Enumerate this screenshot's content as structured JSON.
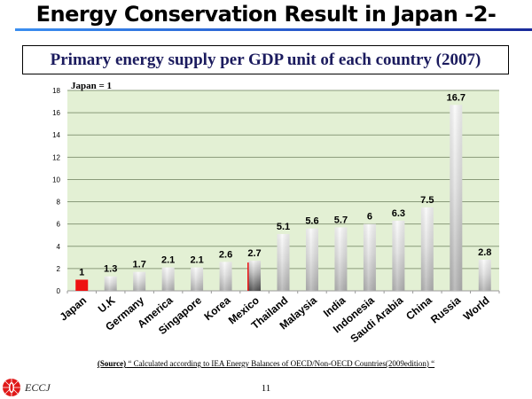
{
  "slide": {
    "title": "Energy Conservation Result in Japan -2-",
    "subtitle": "Primary energy supply per GDP unit of each country (2007)",
    "source_label": "(Source)",
    "source_text": " “ Calculated according to IEA Energy Balances of OECD/Non-OECD Countries(2009edition) “",
    "page_number": "11",
    "logo_text": "ECCJ",
    "logo_icon": "eccj-logo-icon"
  },
  "chart_data": {
    "type": "bar",
    "title": "Primary energy supply per GDP unit of each country (2007)",
    "annotation": "Japan = 1",
    "xlabel": "",
    "ylabel": "",
    "ylim": [
      0,
      18
    ],
    "yticks": [
      0,
      2,
      4,
      6,
      8,
      10,
      12,
      14,
      16,
      18
    ],
    "grid": true,
    "legend": "none",
    "categories": [
      "Japan",
      "U.K",
      "Germany",
      "America",
      "Singapore",
      "Korea",
      "Mexico",
      "Thailand",
      "Malaysia",
      "India",
      "Indonesia",
      "Saudi Arabia",
      "China",
      "Russia",
      "World"
    ],
    "values": [
      1,
      1.3,
      1.7,
      2.1,
      2.1,
      2.6,
      2.7,
      5.1,
      5.6,
      5.7,
      6,
      6.3,
      7.5,
      16.7,
      2.8
    ],
    "labels": [
      "1",
      "1.3",
      "1.7",
      "2.1",
      "2.1",
      "2.6",
      "2.7",
      "5.1",
      "5.6",
      "5.7",
      "6",
      "6.3",
      "7.5",
      "16.7",
      "2.8"
    ],
    "colors": {
      "plot_background": "#e3f0d4",
      "gridline": "#8a9a7a",
      "highlight_bar": "#ee1111",
      "bar_light": "#f7f7f7",
      "bar_dark": "#b5b5b5",
      "mexico_dark": "#555555"
    },
    "highlight_index": 0,
    "special_index": 6
  }
}
